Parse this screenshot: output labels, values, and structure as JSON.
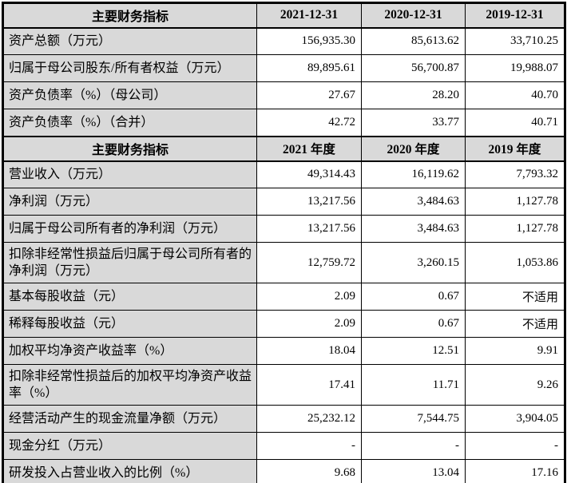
{
  "colors": {
    "header_bg": "#d9d9d9",
    "label_bg": "#d9d9d9",
    "border": "#000000",
    "value_bg": "#ffffff",
    "text": "#000000"
  },
  "sections": [
    {
      "header": {
        "indicator": "主要财务指标",
        "cols": [
          "2021-12-31",
          "2020-12-31",
          "2019-12-31"
        ]
      },
      "rows": [
        {
          "label": "资产总额（万元）",
          "values": [
            "156,935.30",
            "85,613.62",
            "33,710.25"
          ]
        },
        {
          "label": "归属于母公司股东/所有者权益（万元）",
          "values": [
            "89,895.61",
            "56,700.87",
            "19,988.07"
          ]
        },
        {
          "label": "资产负债率（%）（母公司）",
          "values": [
            "27.67",
            "28.20",
            "40.70"
          ]
        },
        {
          "label": "资产负债率（%）（合并）",
          "values": [
            "42.72",
            "33.77",
            "40.71"
          ]
        }
      ]
    },
    {
      "header": {
        "indicator": "主要财务指标",
        "cols": [
          "2021 年度",
          "2020 年度",
          "2019 年度"
        ]
      },
      "rows": [
        {
          "label": "营业收入（万元）",
          "values": [
            "49,314.43",
            "16,119.62",
            "7,793.32"
          ]
        },
        {
          "label": "净利润（万元）",
          "values": [
            "13,217.56",
            "3,484.63",
            "1,127.78"
          ]
        },
        {
          "label": "归属于母公司所有者的净利润（万元）",
          "values": [
            "13,217.56",
            "3,484.63",
            "1,127.78"
          ]
        },
        {
          "label": "扣除非经常性损益后归属于母公司所有者的净利润（万元）",
          "values": [
            "12,759.72",
            "3,260.15",
            "1,053.86"
          ]
        },
        {
          "label": "基本每股收益（元）",
          "values": [
            "2.09",
            "0.67",
            "不适用"
          ]
        },
        {
          "label": "稀释每股收益（元）",
          "values": [
            "2.09",
            "0.67",
            "不适用"
          ]
        },
        {
          "label": "加权平均净资产收益率（%）",
          "values": [
            "18.04",
            "12.51",
            "9.91"
          ]
        },
        {
          "label": "扣除非经常性损益后的加权平均净资产收益率（%）",
          "values": [
            "17.41",
            "11.71",
            "9.26"
          ]
        },
        {
          "label": "经营活动产生的现金流量净额（万元）",
          "values": [
            "25,232.12",
            "7,544.75",
            "3,904.05"
          ]
        },
        {
          "label": "现金分红（万元）",
          "values": [
            "-",
            "-",
            "-"
          ]
        },
        {
          "label": "研发投入占营业收入的比例（%）",
          "values": [
            "9.68",
            "13.04",
            "17.16"
          ]
        }
      ]
    }
  ]
}
